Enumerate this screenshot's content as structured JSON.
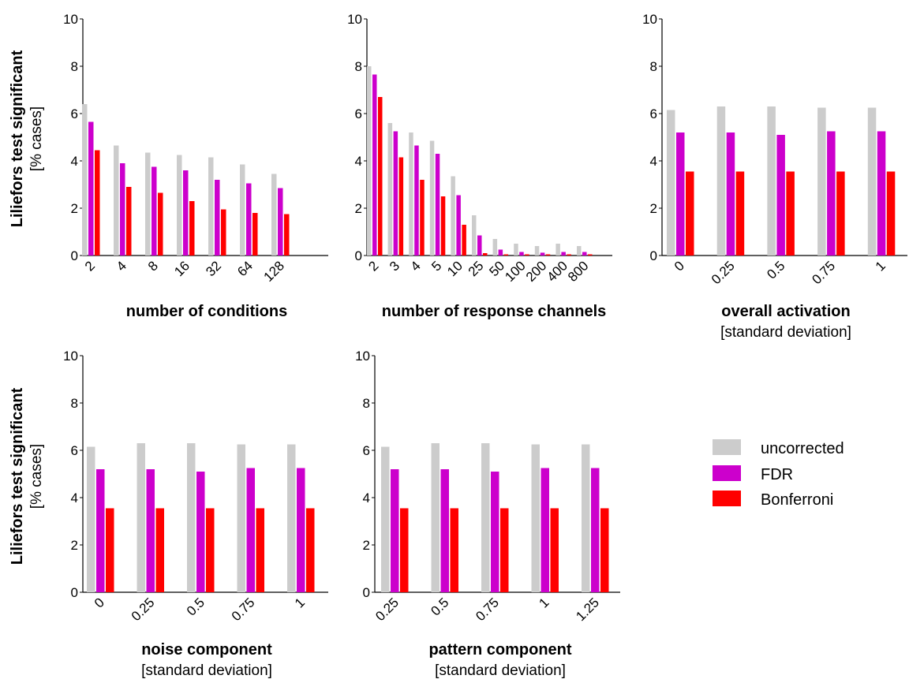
{
  "legend": {
    "items": [
      {
        "label": "uncorrected",
        "color": "#cccccc"
      },
      {
        "label": "FDR",
        "color": "#cc00cc"
      },
      {
        "label": "Bonferroni",
        "color": "#ff0000"
      }
    ]
  },
  "row_labels": [
    {
      "title": "Liliefors test significant",
      "unit": "[% cases]"
    },
    {
      "title": "Liliefors test significant",
      "unit": "[% cases]"
    }
  ],
  "chart_data": [
    {
      "type": "bar",
      "xlabel": "number of conditions",
      "xlabel_sub": "",
      "ylim": [
        0,
        10
      ],
      "yticks": [
        0,
        2,
        4,
        6,
        8,
        10
      ],
      "categories": [
        "2",
        "4",
        "8",
        "16",
        "32",
        "64",
        "128"
      ],
      "series": [
        {
          "name": "uncorrected",
          "values": [
            6.4,
            4.65,
            4.35,
            4.25,
            4.15,
            3.85,
            3.45
          ]
        },
        {
          "name": "FDR",
          "values": [
            5.65,
            3.9,
            3.75,
            3.6,
            3.2,
            3.05,
            2.85
          ]
        },
        {
          "name": "Bonferroni",
          "values": [
            4.45,
            2.9,
            2.65,
            2.3,
            1.95,
            1.8,
            1.75
          ]
        }
      ]
    },
    {
      "type": "bar",
      "xlabel": "number of response channels",
      "xlabel_sub": "",
      "ylim": [
        0,
        10
      ],
      "yticks": [
        0,
        2,
        4,
        6,
        8,
        10
      ],
      "categories": [
        "2",
        "3",
        "4",
        "5",
        "10",
        "25",
        "50",
        "100",
        "200",
        "400",
        "800"
      ],
      "series": [
        {
          "name": "uncorrected",
          "values": [
            8.0,
            5.6,
            5.2,
            4.85,
            3.35,
            1.7,
            0.7,
            0.5,
            0.4,
            0.5,
            0.4
          ]
        },
        {
          "name": "FDR",
          "values": [
            7.65,
            5.25,
            4.65,
            4.3,
            2.55,
            0.85,
            0.25,
            0.15,
            0.12,
            0.15,
            0.15
          ]
        },
        {
          "name": "Bonferroni",
          "values": [
            6.7,
            4.15,
            3.2,
            2.5,
            1.3,
            0.1,
            0.05,
            0.05,
            0.05,
            0.05,
            0.05
          ]
        }
      ]
    },
    {
      "type": "bar",
      "xlabel": "overall activation",
      "xlabel_sub": "[standard deviation]",
      "ylim": [
        0,
        10
      ],
      "yticks": [
        0,
        2,
        4,
        6,
        8,
        10
      ],
      "categories": [
        "0",
        "0.25",
        "0.5",
        "0.75",
        "1"
      ],
      "series": [
        {
          "name": "uncorrected",
          "values": [
            6.15,
            6.3,
            6.3,
            6.25,
            6.25
          ]
        },
        {
          "name": "FDR",
          "values": [
            5.2,
            5.2,
            5.1,
            5.25,
            5.25
          ]
        },
        {
          "name": "Bonferroni",
          "values": [
            3.55,
            3.55,
            3.55,
            3.55,
            3.55
          ]
        }
      ]
    },
    {
      "type": "bar",
      "xlabel": "noise component",
      "xlabel_sub": "[standard deviation]",
      "ylim": [
        0,
        10
      ],
      "yticks": [
        0,
        2,
        4,
        6,
        8,
        10
      ],
      "categories": [
        "0",
        "0.25",
        "0.5",
        "0.75",
        "1"
      ],
      "series": [
        {
          "name": "uncorrected",
          "values": [
            6.15,
            6.3,
            6.3,
            6.25,
            6.25
          ]
        },
        {
          "name": "FDR",
          "values": [
            5.2,
            5.2,
            5.1,
            5.25,
            5.25
          ]
        },
        {
          "name": "Bonferroni",
          "values": [
            3.55,
            3.55,
            3.55,
            3.55,
            3.55
          ]
        }
      ]
    },
    {
      "type": "bar",
      "xlabel": "pattern component",
      "xlabel_sub": "[standard deviation]",
      "ylim": [
        0,
        10
      ],
      "yticks": [
        0,
        2,
        4,
        6,
        8,
        10
      ],
      "categories": [
        "0.25",
        "0.5",
        "0.75",
        "1",
        "1.25"
      ],
      "series": [
        {
          "name": "uncorrected",
          "values": [
            6.15,
            6.3,
            6.3,
            6.25,
            6.25
          ]
        },
        {
          "name": "FDR",
          "values": [
            5.2,
            5.2,
            5.1,
            5.25,
            5.25
          ]
        },
        {
          "name": "Bonferroni",
          "values": [
            3.55,
            3.55,
            3.55,
            3.55,
            3.55
          ]
        }
      ]
    }
  ]
}
